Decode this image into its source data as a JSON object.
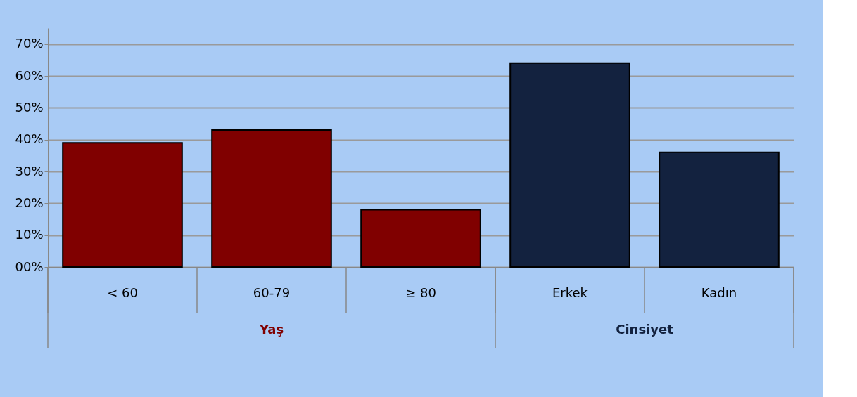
{
  "chart_data": {
    "type": "bar",
    "categories": [
      "< 60",
      "60-79",
      "≥ 80",
      "Erkek",
      "Kadın"
    ],
    "series": [
      {
        "name": "Yaş",
        "color": "#800000",
        "values": [
          39,
          43,
          18,
          null,
          null
        ]
      },
      {
        "name": "Cinsiyet",
        "color": "#13223f",
        "values": [
          null,
          null,
          null,
          64,
          36
        ]
      }
    ],
    "ylim": [
      0,
      75
    ],
    "yticks": [
      {
        "value": 0,
        "label": "00%"
      },
      {
        "value": 10,
        "label": "10%"
      },
      {
        "value": 20,
        "label": "20%"
      },
      {
        "value": 30,
        "label": "30%"
      },
      {
        "value": 40,
        "label": "40%"
      },
      {
        "value": 50,
        "label": "50%"
      },
      {
        "value": 60,
        "label": "60%"
      },
      {
        "value": 70,
        "label": "70%"
      }
    ],
    "grid": true
  }
}
